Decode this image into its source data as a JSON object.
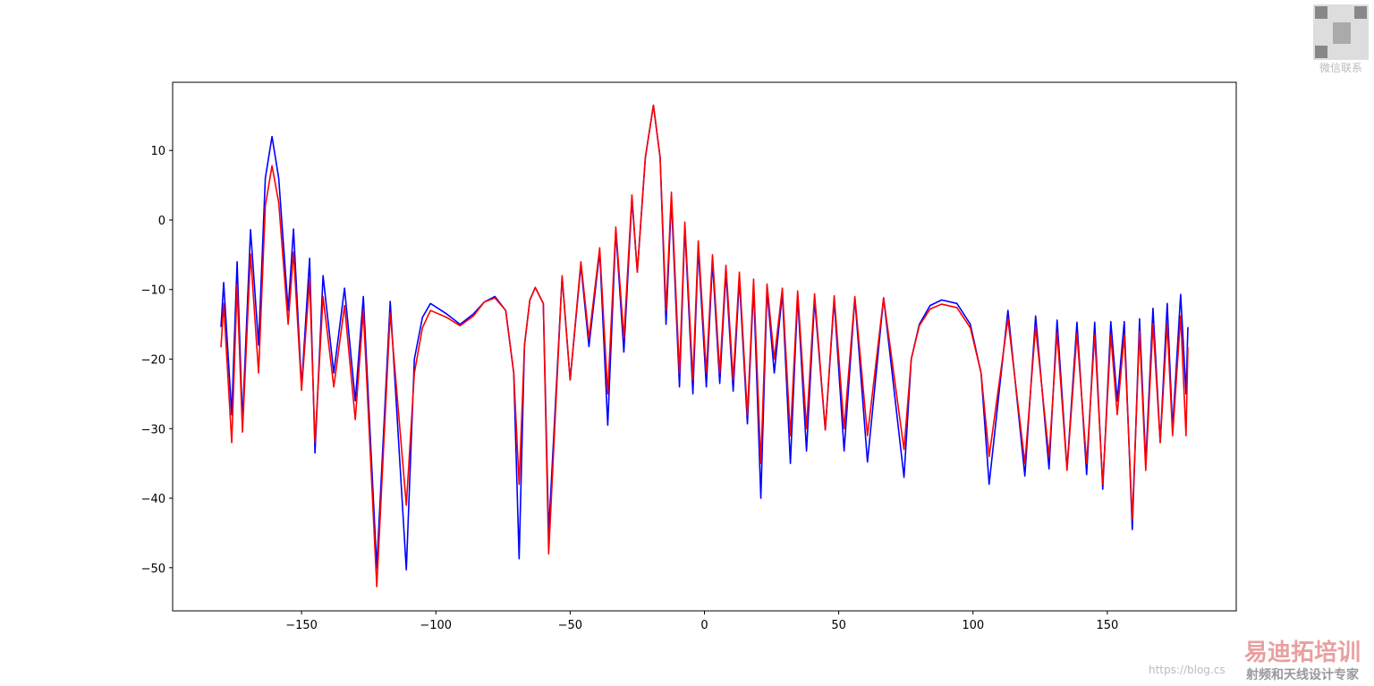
{
  "chart_data": {
    "type": "line",
    "x": [
      -180,
      -179,
      -176,
      -174,
      -172,
      -169,
      -166,
      -163.5,
      -161,
      -158.5,
      -155,
      -153,
      -150,
      -147,
      -145,
      -142,
      -138,
      -134,
      -130,
      -127,
      -122,
      -117,
      -111,
      -108,
      -105,
      -102,
      -96,
      -91,
      -86,
      -82,
      -78,
      -74,
      -71,
      -69,
      -67,
      -65,
      -63,
      -60,
      -58,
      -53,
      -50,
      -46,
      -43,
      -39,
      -36,
      -33,
      -30,
      -27,
      -25,
      -22,
      -19,
      -16.5,
      -14.3,
      -12.3,
      -9.3,
      -7.3,
      -4.3,
      -2.3,
      0.7,
      3,
      5.7,
      8,
      10.7,
      13,
      16,
      18.3,
      21,
      23.3,
      26,
      29,
      32,
      34.7,
      38,
      41,
      45,
      48.3,
      52,
      56,
      60.7,
      66.7,
      74.3,
      77,
      80,
      84,
      88.3,
      94,
      99,
      103,
      106,
      113,
      119.3,
      123.3,
      128.3,
      131.3,
      135,
      138.7,
      142.3,
      145.3,
      148.3,
      151.3,
      153.7,
      156.3,
      159.3,
      162,
      164.3,
      167,
      169.7,
      172.3,
      174.3,
      177.3,
      179.3,
      180
    ],
    "series": [
      {
        "color": "#0000ff",
        "values": [
          -15.4,
          -9,
          -28,
          -6,
          -29,
          -1.4,
          -18,
          6,
          12,
          6,
          -13,
          -1.3,
          -24,
          -5.5,
          -33.5,
          -8,
          -22,
          -9.8,
          -26,
          -11,
          -50,
          -11.7,
          -50.3,
          -20,
          -14,
          -12,
          -13.5,
          -15,
          -13.5,
          -11.8,
          -11,
          -13,
          -22,
          -48.7,
          -18,
          -11.5,
          -9.7,
          -12,
          -45,
          -8.2,
          -23,
          -6.5,
          -18.2,
          -4.5,
          -29.5,
          -1.5,
          -19,
          3,
          -7.5,
          9,
          16.5,
          9,
          -15,
          3,
          -24,
          -1,
          -25,
          -4,
          -24,
          -6,
          -23.5,
          -7.5,
          -24.6,
          -8.5,
          -29.3,
          -9.5,
          -40,
          -10,
          -22,
          -10.5,
          -35,
          -11,
          -33.2,
          -11.5,
          -30.2,
          -11.5,
          -33.2,
          -11.2,
          -34.8,
          -11.2,
          -37,
          -20,
          -15,
          -12.3,
          -11.5,
          -12,
          -15,
          -22,
          -38,
          -13,
          -36.8,
          -13.8,
          -35.8,
          -14.4,
          -35.8,
          -14.7,
          -36.6,
          -14.7,
          -38.7,
          -14.6,
          -26,
          -14.6,
          -44.5,
          -14.2,
          -35,
          -12.7,
          -32,
          -12,
          -30,
          -10.7,
          -25,
          -15.4
        ]
      },
      {
        "color": "#ff0000",
        "values": [
          -18.3,
          -12,
          -32,
          -9.3,
          -30.5,
          -4.9,
          -22,
          2,
          7.8,
          2.5,
          -15,
          -4.6,
          -24.5,
          -8.6,
          -32,
          -11,
          -24,
          -12.3,
          -28.7,
          -13,
          -52.7,
          -13.4,
          -41,
          -22,
          -15.5,
          -13,
          -14,
          -15.2,
          -13.8,
          -11.8,
          -11.2,
          -13,
          -22,
          -38,
          -18,
          -11.5,
          -9.7,
          -12,
          -48,
          -8,
          -23,
          -6,
          -17,
          -4,
          -25,
          -1,
          -17,
          3.6,
          -7.5,
          9,
          16.5,
          9,
          -13,
          4,
          -22,
          -0.3,
          -23,
          -3,
          -22,
          -5,
          -22,
          -6.5,
          -23,
          -7.5,
          -28,
          -8.5,
          -35,
          -9.2,
          -20,
          -9.8,
          -31,
          -10.2,
          -30,
          -10.6,
          -30.2,
          -10.9,
          -30,
          -11,
          -31,
          -11.2,
          -33,
          -20,
          -15.2,
          -12.8,
          -12.1,
          -12.6,
          -15.5,
          -22,
          -34,
          -14.2,
          -35,
          -15.4,
          -34,
          -16.2,
          -36,
          -16.3,
          -35,
          -16.5,
          -38,
          -16.5,
          -28,
          -16.5,
          -43,
          -16,
          -36,
          -14.9,
          -32,
          -14.9,
          -31,
          -13.8,
          -31,
          -18.3
        ]
      }
    ],
    "xlim": [
      -198,
      198
    ],
    "ylim": [
      -56.2,
      19.8
    ],
    "xticks": [
      {
        "value": -150,
        "label": "−150"
      },
      {
        "value": -100,
        "label": "−100"
      },
      {
        "value": -50,
        "label": "−50"
      },
      0,
      50,
      100,
      150
    ],
    "yticks": [
      {
        "value": -50,
        "label": "−50"
      },
      {
        "value": -40,
        "label": "−40"
      },
      {
        "value": -30,
        "label": "−30"
      },
      {
        "value": -20,
        "label": "−20"
      },
      {
        "value": -10,
        "label": "−10"
      },
      0,
      10
    ]
  },
  "watermark": {
    "qr_caption": "微信联系",
    "brand": "易迪拓培训",
    "slogan": "射频和天线设计专家",
    "url": "https://blog.cs"
  }
}
